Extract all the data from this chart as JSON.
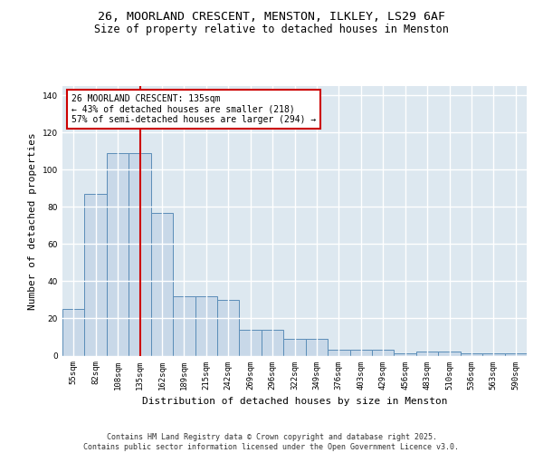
{
  "title1": "26, MOORLAND CRESCENT, MENSTON, ILKLEY, LS29 6AF",
  "title2": "Size of property relative to detached houses in Menston",
  "xlabel": "Distribution of detached houses by size in Menston",
  "ylabel": "Number of detached properties",
  "bar_labels": [
    "55sqm",
    "82sqm",
    "108sqm",
    "135sqm",
    "162sqm",
    "189sqm",
    "215sqm",
    "242sqm",
    "269sqm",
    "296sqm",
    "322sqm",
    "349sqm",
    "376sqm",
    "403sqm",
    "429sqm",
    "456sqm",
    "483sqm",
    "510sqm",
    "536sqm",
    "563sqm",
    "590sqm"
  ],
  "bar_values": [
    25,
    87,
    109,
    109,
    77,
    32,
    32,
    30,
    14,
    14,
    9,
    9,
    3,
    3,
    3,
    1,
    2,
    2,
    1,
    1,
    1
  ],
  "bar_color": "#c8d8e8",
  "bar_edge_color": "#5b8db8",
  "red_line_index": 3,
  "red_line_color": "#cc0000",
  "annotation_text": "26 MOORLAND CRESCENT: 135sqm\n← 43% of detached houses are smaller (218)\n57% of semi-detached houses are larger (294) →",
  "ylim": [
    0,
    145
  ],
  "yticks": [
    0,
    20,
    40,
    60,
    80,
    100,
    120,
    140
  ],
  "background_color": "#dde8f0",
  "grid_color": "#ffffff",
  "footer_text": "Contains HM Land Registry data © Crown copyright and database right 2025.\nContains public sector information licensed under the Open Government Licence v3.0.",
  "title_fontsize": 9.5,
  "subtitle_fontsize": 8.5,
  "axis_label_fontsize": 8,
  "tick_fontsize": 6.5,
  "footer_fontsize": 6,
  "annotation_fontsize": 7
}
